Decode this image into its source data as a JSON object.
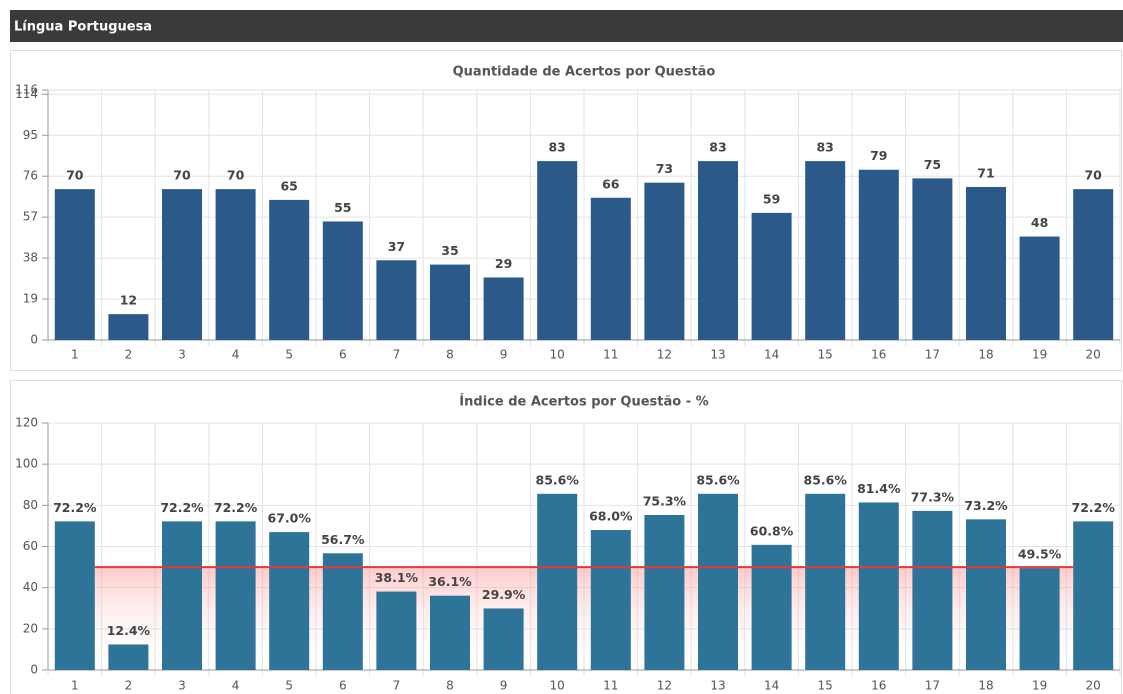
{
  "header": {
    "title": "Língua Portuguesa"
  },
  "chart_data": [
    {
      "type": "bar",
      "title": "Quantidade de Acertos por Questão",
      "categories": [
        "1",
        "2",
        "3",
        "4",
        "5",
        "6",
        "7",
        "8",
        "9",
        "10",
        "11",
        "12",
        "13",
        "14",
        "15",
        "16",
        "17",
        "18",
        "19",
        "20"
      ],
      "values": [
        70,
        12,
        70,
        70,
        65,
        55,
        37,
        35,
        29,
        83,
        66,
        73,
        83,
        59,
        83,
        79,
        75,
        71,
        48,
        70
      ],
      "color": "#2b5a8a",
      "ylim": [
        0,
        116
      ],
      "yticks": [
        0,
        19,
        38,
        57,
        76,
        95,
        114,
        116
      ],
      "grid": true
    },
    {
      "type": "bar",
      "title": "Índice de Acertos por Questão - %",
      "categories": [
        "1",
        "2",
        "3",
        "4",
        "5",
        "6",
        "7",
        "8",
        "9",
        "10",
        "11",
        "12",
        "13",
        "14",
        "15",
        "16",
        "17",
        "18",
        "19",
        "20"
      ],
      "values": [
        72.2,
        12.4,
        72.2,
        72.2,
        67.0,
        56.7,
        38.1,
        36.1,
        29.9,
        85.6,
        68.0,
        75.3,
        85.6,
        60.8,
        85.6,
        81.4,
        77.3,
        73.2,
        49.5,
        72.2
      ],
      "value_labels": [
        "72.2%",
        "12.4%",
        "72.2%",
        "72.2%",
        "67.0%",
        "56.7%",
        "38.1%",
        "36.1%",
        "29.9%",
        "85.6%",
        "68.0%",
        "75.3%",
        "85.6%",
        "60.8%",
        "85.6%",
        "81.4%",
        "77.3%",
        "73.2%",
        "49.5%",
        "72.2%"
      ],
      "color": "#2e7398",
      "ylim": [
        0,
        120
      ],
      "yticks": [
        0,
        20,
        40,
        60,
        80,
        100,
        120
      ],
      "grid": true,
      "reference_line": {
        "value": 50,
        "color": "#e53935"
      }
    }
  ]
}
